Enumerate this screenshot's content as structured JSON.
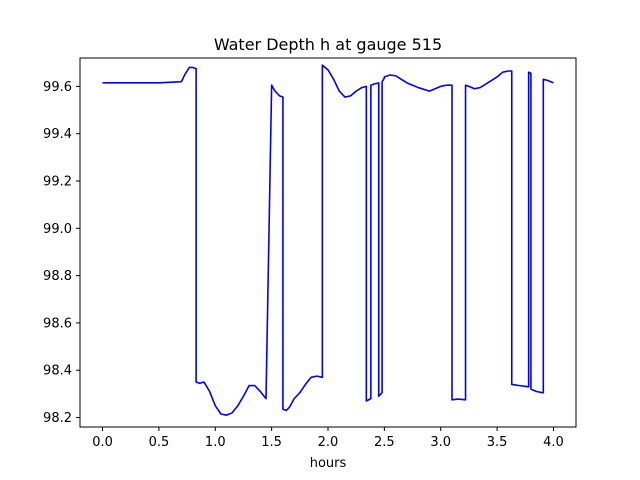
{
  "chart_data": {
    "type": "line",
    "title": "Water Depth h at gauge 515",
    "xlabel": "hours",
    "ylabel": "",
    "xlim": [
      -0.2,
      4.2
    ],
    "ylim": [
      98.16,
      99.72
    ],
    "xticks": [
      0.0,
      0.5,
      1.0,
      1.5,
      2.0,
      2.5,
      3.0,
      3.5,
      4.0
    ],
    "xtick_labels": [
      "0.0",
      "0.5",
      "1.0",
      "1.5",
      "2.0",
      "2.5",
      "3.0",
      "3.5",
      "4.0"
    ],
    "yticks": [
      98.2,
      98.4,
      98.6,
      98.8,
      99.0,
      99.2,
      99.4,
      99.6
    ],
    "ytick_labels": [
      "98.2",
      "98.4",
      "98.6",
      "98.8",
      "99.0",
      "99.2",
      "99.4",
      "99.6"
    ],
    "grid": false,
    "series": [
      {
        "color": "#0000ff",
        "x": [
          0.0,
          0.5,
          0.7,
          0.73,
          0.77,
          0.8,
          0.83,
          0.83,
          0.86,
          0.9,
          0.95,
          1.0,
          1.05,
          1.1,
          1.15,
          1.2,
          1.25,
          1.3,
          1.35,
          1.4,
          1.45,
          1.5,
          1.5,
          1.53,
          1.57,
          1.6,
          1.6,
          1.63,
          1.66,
          1.7,
          1.75,
          1.8,
          1.85,
          1.9,
          1.95,
          1.95,
          2.0,
          2.05,
          2.1,
          2.15,
          2.2,
          2.25,
          2.3,
          2.34,
          2.34,
          2.38,
          2.38,
          2.41,
          2.45,
          2.45,
          2.48,
          2.48,
          2.5,
          2.5,
          2.55,
          2.6,
          2.65,
          2.7,
          2.75,
          2.8,
          2.9,
          3.0,
          3.05,
          3.1,
          3.1,
          3.15,
          3.2,
          3.22,
          3.22,
          3.25,
          3.3,
          3.35,
          3.4,
          3.5,
          3.55,
          3.6,
          3.63,
          3.63,
          3.7,
          3.78,
          3.78,
          3.8,
          3.8,
          3.85,
          3.9,
          3.91,
          3.91,
          3.95,
          4.0
        ],
        "y": [
          99.615,
          99.615,
          99.62,
          99.65,
          99.68,
          99.68,
          99.675,
          98.35,
          98.345,
          98.35,
          98.31,
          98.25,
          98.215,
          98.21,
          98.22,
          98.25,
          98.29,
          98.335,
          98.335,
          98.31,
          98.28,
          99.605,
          99.605,
          99.58,
          99.56,
          99.555,
          98.235,
          98.23,
          98.245,
          98.28,
          98.305,
          98.34,
          98.37,
          98.375,
          98.37,
          99.69,
          99.67,
          99.63,
          99.58,
          99.555,
          99.56,
          99.58,
          99.595,
          99.6,
          98.27,
          98.28,
          99.605,
          99.61,
          99.615,
          98.29,
          98.305,
          99.62,
          99.635,
          99.64,
          99.648,
          99.645,
          99.63,
          99.615,
          99.605,
          99.595,
          99.58,
          99.6,
          99.605,
          99.605,
          98.275,
          98.278,
          98.276,
          98.275,
          99.605,
          99.6,
          99.59,
          99.595,
          99.61,
          99.64,
          99.66,
          99.665,
          99.665,
          98.34,
          98.335,
          98.33,
          99.66,
          99.655,
          98.32,
          98.31,
          98.305,
          98.305,
          99.63,
          99.625,
          99.615
        ]
      }
    ]
  }
}
